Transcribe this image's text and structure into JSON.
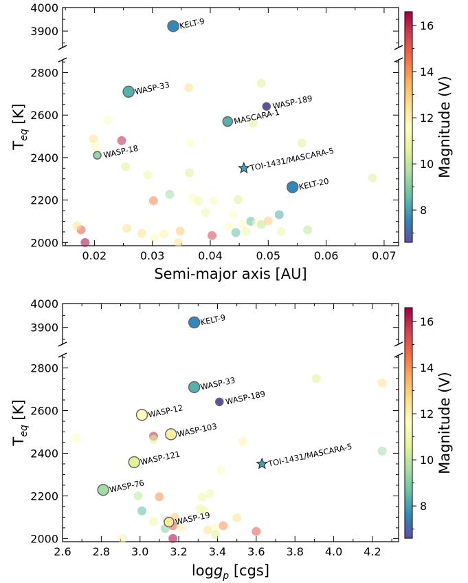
{
  "colorbar": {
    "label": "Magnitude (V)",
    "min": 6.6,
    "max": 16.6,
    "ticks": [
      "8",
      "10",
      "12",
      "14",
      "16"
    ],
    "tick_values": [
      8,
      10,
      12,
      14,
      16
    ],
    "colormap": "Spectral_r"
  },
  "chart_data": [
    {
      "type": "scatter",
      "xlabel": "Semi-major axis [AU]",
      "ylabel": "T_eq [K]",
      "xlim": [
        0.0145,
        0.0725
      ],
      "ylim_lower": [
        1985,
        2860
      ],
      "ylim_upper": [
        3830,
        4000
      ],
      "x_ticks": [
        0.02,
        0.03,
        0.04,
        0.05,
        0.06,
        0.07
      ],
      "x_tick_labels": [
        "0.02",
        "0.03",
        "0.04",
        "0.05",
        "0.06",
        "0.07"
      ],
      "y_ticks_lower": [
        2000,
        2200,
        2400,
        2600,
        2800
      ],
      "y_ticks_upper": [
        3900,
        4000
      ],
      "labeled": [
        {
          "name": "KELT-9",
          "x": 0.0336,
          "y": 3921,
          "mag": 7.6,
          "size": "large"
        },
        {
          "name": "WASP-33",
          "x": 0.0259,
          "y": 2710,
          "mag": 8.3,
          "size": "large"
        },
        {
          "name": "WASP-189",
          "x": 0.0497,
          "y": 2641,
          "mag": 6.6,
          "size": "small"
        },
        {
          "name": "MASCARA-1",
          "x": 0.043,
          "y": 2570,
          "mag": 8.3,
          "size": "medium"
        },
        {
          "name": "WASP-18",
          "x": 0.0205,
          "y": 2411,
          "mag": 9.3,
          "size": "small"
        },
        {
          "name": "TOI-1431/MASCARA-5",
          "x": 0.0458,
          "y": 2350,
          "mag": 8.0,
          "size": "star"
        },
        {
          "name": "KELT-20",
          "x": 0.0542,
          "y": 2261,
          "mag": 7.6,
          "size": "large"
        }
      ],
      "points": [
        {
          "x": 0.0247,
          "y": 2480,
          "mag": 16.0
        },
        {
          "x": 0.0184,
          "y": 2000,
          "mag": 16.5
        },
        {
          "x": 0.0177,
          "y": 2060,
          "mag": 15.0
        },
        {
          "x": 0.017,
          "y": 2078,
          "mag": 12.5
        },
        {
          "x": 0.0198,
          "y": 2488,
          "mag": 12.5
        },
        {
          "x": 0.0202,
          "y": 2450,
          "mag": 11.5
        },
        {
          "x": 0.0224,
          "y": 2578,
          "mag": 11.5
        },
        {
          "x": 0.0254,
          "y": 2357,
          "mag": 10.5
        },
        {
          "x": 0.0256,
          "y": 2067,
          "mag": 12.5
        },
        {
          "x": 0.0282,
          "y": 2043,
          "mag": 12.5
        },
        {
          "x": 0.0292,
          "y": 2319,
          "mag": 11.0
        },
        {
          "x": 0.0302,
          "y": 2197,
          "mag": 14.2
        },
        {
          "x": 0.0304,
          "y": 2024,
          "mag": 11.5
        },
        {
          "x": 0.032,
          "y": 2040,
          "mag": 12.0
        },
        {
          "x": 0.033,
          "y": 2227,
          "mag": 9.5
        },
        {
          "x": 0.0345,
          "y": 2000,
          "mag": 12.5
        },
        {
          "x": 0.0348,
          "y": 2054,
          "mag": 13.0
        },
        {
          "x": 0.0363,
          "y": 2729,
          "mag": 12.5
        },
        {
          "x": 0.0364,
          "y": 2329,
          "mag": 10.5
        },
        {
          "x": 0.0366,
          "y": 2470,
          "mag": 11.5
        },
        {
          "x": 0.037,
          "y": 2210,
          "mag": 11.5
        },
        {
          "x": 0.038,
          "y": 2195,
          "mag": 11.0
        },
        {
          "x": 0.0392,
          "y": 2142,
          "mag": 11.0
        },
        {
          "x": 0.0403,
          "y": 2033,
          "mag": 15.5
        },
        {
          "x": 0.0406,
          "y": 2198,
          "mag": 11.5
        },
        {
          "x": 0.0432,
          "y": 2076,
          "mag": 11.5
        },
        {
          "x": 0.044,
          "y": 2132,
          "mag": 11.5
        },
        {
          "x": 0.0444,
          "y": 2047,
          "mag": 8.5
        },
        {
          "x": 0.0448,
          "y": 2202,
          "mag": 10.5
        },
        {
          "x": 0.0457,
          "y": 2085,
          "mag": 11.5
        },
        {
          "x": 0.0462,
          "y": 2053,
          "mag": 11.0
        },
        {
          "x": 0.047,
          "y": 2100,
          "mag": 8.5
        },
        {
          "x": 0.0474,
          "y": 2562,
          "mag": 10.5
        },
        {
          "x": 0.048,
          "y": 2092,
          "mag": 11.5
        },
        {
          "x": 0.0488,
          "y": 2750,
          "mag": 10.5
        },
        {
          "x": 0.0488,
          "y": 2085,
          "mag": 10.0
        },
        {
          "x": 0.05,
          "y": 2102,
          "mag": 13.0
        },
        {
          "x": 0.0519,
          "y": 2131,
          "mag": 8.2
        },
        {
          "x": 0.0522,
          "y": 2052,
          "mag": 11.0
        },
        {
          "x": 0.0558,
          "y": 2468,
          "mag": 10.5
        },
        {
          "x": 0.0568,
          "y": 2060,
          "mag": 10.0
        },
        {
          "x": 0.068,
          "y": 2304,
          "mag": 10.5
        }
      ]
    },
    {
      "type": "scatter",
      "xlabel": "loggp [cgs]",
      "ylabel": "T_eq [K]",
      "xlim": [
        2.6,
        4.335
      ],
      "ylim_lower": [
        1985,
        2860
      ],
      "ylim_upper": [
        3830,
        4000
      ],
      "x_ticks": [
        2.6,
        2.8,
        3.0,
        3.2,
        3.4,
        3.6,
        3.8,
        4.0,
        4.2
      ],
      "x_tick_labels": [
        "2.6",
        "2.8",
        "3.0",
        "3.2",
        "3.4",
        "3.6",
        "3.8",
        "4.0",
        "4.2"
      ],
      "y_ticks_lower": [
        2000,
        2200,
        2400,
        2600,
        2800
      ],
      "y_ticks_upper": [
        3900,
        4000
      ],
      "labeled": [
        {
          "name": "KELT-9",
          "x": 3.28,
          "y": 3921,
          "mag": 7.6,
          "size": "large"
        },
        {
          "name": "WASP-33",
          "x": 3.28,
          "y": 2710,
          "mag": 8.3,
          "size": "large"
        },
        {
          "name": "WASP-189",
          "x": 3.41,
          "y": 2641,
          "mag": 6.6,
          "size": "small"
        },
        {
          "name": "WASP-12",
          "x": 3.01,
          "y": 2580,
          "mag": 11.6,
          "size": "large"
        },
        {
          "name": "WASP-103",
          "x": 3.16,
          "y": 2489,
          "mag": 12.1,
          "size": "large"
        },
        {
          "name": "WASP-121",
          "x": 2.97,
          "y": 2358,
          "mag": 10.5,
          "size": "large"
        },
        {
          "name": "TOI-1431/MASCARA-5",
          "x": 3.63,
          "y": 2350,
          "mag": 8.0,
          "size": "star"
        },
        {
          "name": "WASP-76",
          "x": 2.81,
          "y": 2228,
          "mag": 9.5,
          "size": "large"
        },
        {
          "name": "WASP-19",
          "x": 3.15,
          "y": 2077,
          "mag": 12.3,
          "size": "medium"
        }
      ],
      "points": [
        {
          "x": 2.67,
          "y": 2472,
          "mag": 11.5
        },
        {
          "x": 2.91,
          "y": 2000,
          "mag": 12.0
        },
        {
          "x": 2.99,
          "y": 2200,
          "mag": 10.0
        },
        {
          "x": 3.01,
          "y": 2130,
          "mag": 8.5
        },
        {
          "x": 3.07,
          "y": 2080,
          "mag": 11.0
        },
        {
          "x": 3.07,
          "y": 2480,
          "mag": 16.0
        },
        {
          "x": 3.07,
          "y": 2465,
          "mag": 10.5
        },
        {
          "x": 3.1,
          "y": 2196,
          "mag": 14.0
        },
        {
          "x": 3.13,
          "y": 2047,
          "mag": 9.0
        },
        {
          "x": 3.14,
          "y": 2085,
          "mag": 10.0
        },
        {
          "x": 3.17,
          "y": 2000,
          "mag": 16.5
        },
        {
          "x": 3.17,
          "y": 2060,
          "mag": 15.0
        },
        {
          "x": 3.18,
          "y": 2100,
          "mag": 13.0
        },
        {
          "x": 3.21,
          "y": 2052,
          "mag": 12.0
        },
        {
          "x": 3.31,
          "y": 2140,
          "mag": 11.0
        },
        {
          "x": 3.32,
          "y": 2195,
          "mag": 11.0
        },
        {
          "x": 3.33,
          "y": 2132,
          "mag": 11.0
        },
        {
          "x": 3.35,
          "y": 2040,
          "mag": 12.5
        },
        {
          "x": 3.36,
          "y": 2210,
          "mag": 11.0
        },
        {
          "x": 3.39,
          "y": 2050,
          "mag": 11.5
        },
        {
          "x": 3.39,
          "y": 2018,
          "mag": 10.5
        },
        {
          "x": 3.42,
          "y": 2320,
          "mag": 11.5
        },
        {
          "x": 3.43,
          "y": 2060,
          "mag": 14.0
        },
        {
          "x": 3.5,
          "y": 2097,
          "mag": 12.5
        },
        {
          "x": 3.53,
          "y": 2455,
          "mag": 12.0
        },
        {
          "x": 3.6,
          "y": 2033,
          "mag": 15.0
        },
        {
          "x": 3.91,
          "y": 2750,
          "mag": 10.5
        },
        {
          "x": 4.25,
          "y": 2730,
          "mag": 12.5
        },
        {
          "x": 4.25,
          "y": 2410,
          "mag": 9.5
        }
      ]
    }
  ]
}
